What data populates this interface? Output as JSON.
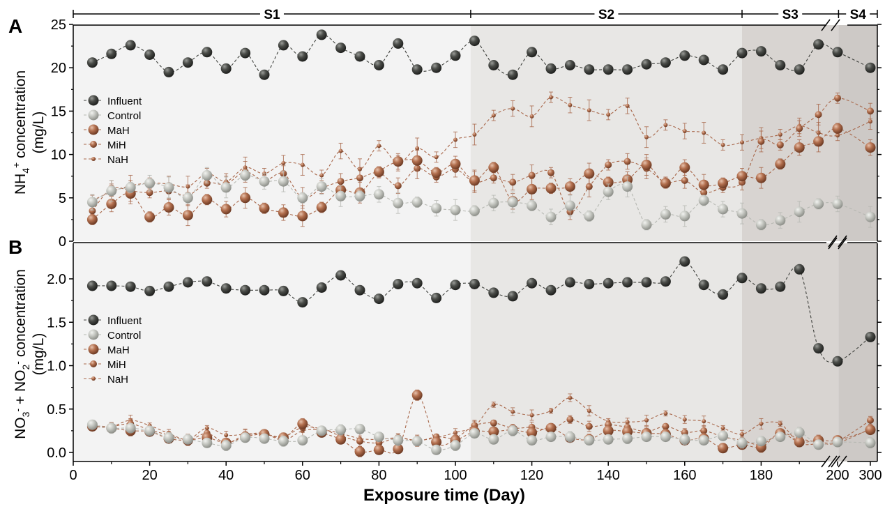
{
  "chart_data": [
    {
      "panel_label": "A",
      "type": "scatter",
      "ylabel_main": "NH",
      "ylabel_sub": "4",
      "ylabel_sup": "+",
      "ylabel_rest": " concentration",
      "ylabel_unit": "(mg/L)",
      "xlim": [
        0,
        300
      ],
      "ylim": [
        0,
        25
      ],
      "yticks": [
        "0",
        "5",
        "10",
        "15",
        "20",
        "25"
      ],
      "x_broken": true,
      "grid": false,
      "legend_position": "left",
      "series": [
        {
          "name": "Influent",
          "color": "#3d3f3b",
          "marker_size": "large",
          "x": [
            5,
            10,
            15,
            20,
            25,
            30,
            35,
            40,
            45,
            50,
            55,
            60,
            65,
            70,
            75,
            80,
            85,
            90,
            95,
            100,
            105,
            110,
            115,
            120,
            125,
            130,
            135,
            140,
            145,
            150,
            155,
            160,
            165,
            170,
            175,
            180,
            185,
            190,
            195,
            200,
            300
          ],
          "y": [
            20.6,
            21.6,
            22.6,
            21.5,
            19.5,
            20.6,
            21.8,
            19.9,
            21.7,
            19.2,
            22.6,
            21.3,
            23.8,
            22.3,
            21.3,
            20.3,
            22.8,
            19.8,
            20.0,
            21.4,
            23.1,
            20.3,
            19.2,
            21.8,
            19.9,
            20.3,
            19.8,
            19.8,
            19.8,
            20.4,
            20.6,
            21.4,
            20.9,
            19.8,
            21.7,
            21.9,
            20.3,
            19.8,
            22.7,
            21.8,
            20.0
          ]
        },
        {
          "name": "Control",
          "color": "#b6b8b2",
          "marker_size": "large",
          "x": [
            5,
            10,
            15,
            20,
            25,
            30,
            35,
            40,
            45,
            50,
            55,
            60,
            65,
            70,
            75,
            80,
            85,
            90,
            95,
            100,
            105,
            110,
            115,
            120,
            125,
            130,
            135,
            140,
            145,
            150,
            155,
            160,
            165,
            170,
            175,
            180,
            185,
            190,
            195,
            200,
            300
          ],
          "y": [
            4.5,
            5.8,
            6.2,
            6.7,
            6.2,
            5.0,
            7.6,
            6.2,
            7.6,
            6.9,
            6.9,
            5.0,
            6.3,
            5.2,
            5.2,
            5.4,
            4.4,
            4.5,
            3.8,
            3.6,
            3.5,
            4.4,
            4.5,
            4.1,
            2.8,
            4.1,
            2.9,
            5.7,
            6.3,
            1.9,
            3.1,
            2.9,
            4.7,
            3.7,
            3.2,
            1.9,
            2.4,
            3.4,
            4.3,
            4.3,
            2.8
          ]
        },
        {
          "name": "MaH",
          "color": "#a8674a",
          "marker_size": "large",
          "x": [
            5,
            10,
            15,
            20,
            25,
            30,
            35,
            40,
            45,
            50,
            55,
            60,
            65,
            70,
            75,
            80,
            85,
            90,
            95,
            100,
            105,
            110,
            115,
            120,
            125,
            130,
            135,
            140,
            145,
            150,
            155,
            160,
            165,
            170,
            175,
            180,
            185,
            190,
            195,
            200,
            300
          ],
          "y": [
            2.5,
            4.3,
            5.5,
            2.8,
            3.9,
            3.0,
            4.8,
            3.7,
            5.0,
            3.8,
            3.3,
            2.9,
            3.9,
            5.9,
            5.6,
            8.0,
            9.2,
            9.3,
            7.9,
            8.9,
            7.0,
            8.5,
            4.6,
            6.0,
            6.1,
            6.3,
            7.8,
            6.8,
            7.1,
            8.8,
            6.7,
            8.5,
            6.5,
            6.7,
            7.5,
            7.3,
            8.9,
            10.8,
            11.5,
            13.0,
            10.8
          ]
        },
        {
          "name": "MiH",
          "color": "#a8674a",
          "marker_size": "medium",
          "x": [
            5,
            10,
            15,
            20,
            25,
            30,
            35,
            40,
            45,
            50,
            55,
            60,
            65,
            70,
            75,
            80,
            85,
            90,
            95,
            100,
            105,
            110,
            115,
            120,
            125,
            130,
            135,
            140,
            145,
            150,
            155,
            160,
            165,
            170,
            175,
            180,
            185,
            190,
            195,
            200,
            300
          ],
          "y": [
            3.5,
            6.1,
            5.8,
            5.6,
            5.8,
            5.3,
            6.7,
            6.6,
            8.0,
            7.0,
            7.8,
            5.0,
            6.1,
            6.9,
            7.3,
            7.9,
            6.4,
            8.4,
            7.4,
            8.3,
            6.8,
            7.3,
            6.8,
            7.6,
            7.9,
            3.4,
            6.3,
            8.8,
            9.2,
            8.4,
            6.8,
            7.0,
            5.6,
            6.2,
            6.8,
            11.5,
            11.1,
            13.0,
            14.6,
            16.5,
            15.0
          ]
        },
        {
          "name": "NaH",
          "color": "#a8674a",
          "marker_size": "small",
          "x": [
            5,
            10,
            15,
            20,
            25,
            30,
            35,
            40,
            45,
            50,
            55,
            60,
            65,
            70,
            75,
            80,
            85,
            90,
            95,
            100,
            105,
            110,
            115,
            120,
            125,
            130,
            135,
            140,
            145,
            150,
            155,
            160,
            165,
            170,
            175,
            180,
            185,
            190,
            195,
            200,
            300
          ],
          "y": [
            4.7,
            5.7,
            6.4,
            6.7,
            6.6,
            6.3,
            7.8,
            6.9,
            8.5,
            7.8,
            9.0,
            8.8,
            7.6,
            10.4,
            8.3,
            11.0,
            9.0,
            10.7,
            9.7,
            11.7,
            12.3,
            14.5,
            15.3,
            14.4,
            16.6,
            15.7,
            15.1,
            14.6,
            15.6,
            12.0,
            13.4,
            12.7,
            12.5,
            11.1,
            11.4,
            11.9,
            12.3,
            13.3,
            12.5,
            12.2,
            13.8
          ]
        }
      ],
      "annotations": {
        "stages": [
          "S1",
          "S2",
          "S3",
          "S4"
        ],
        "stage_bounds": [
          0,
          104,
          175,
          203,
          300
        ]
      }
    },
    {
      "panel_label": "B",
      "type": "scatter",
      "xlabel": "Exposure time (Day)",
      "ylabel_unit": "(mg/L)",
      "xticks": [
        "0",
        "20",
        "40",
        "60",
        "80",
        "100",
        "120",
        "140",
        "160",
        "180",
        "200",
        "300"
      ],
      "yticks": [
        "0.0",
        "0.5",
        "1.0",
        "1.5",
        "2.0"
      ],
      "xlim": [
        0,
        300
      ],
      "ylim": [
        -0.1,
        2.4
      ],
      "x_broken": true,
      "grid": false,
      "legend_position": "left",
      "series": [
        {
          "name": "Influent",
          "color": "#3d3f3b",
          "marker_size": "large",
          "x": [
            5,
            10,
            15,
            20,
            25,
            30,
            35,
            40,
            45,
            50,
            55,
            60,
            65,
            70,
            75,
            80,
            85,
            90,
            95,
            100,
            105,
            110,
            115,
            120,
            125,
            130,
            135,
            140,
            145,
            150,
            155,
            160,
            165,
            170,
            175,
            180,
            185,
            190,
            195,
            200,
            300
          ],
          "y": [
            1.92,
            1.92,
            1.91,
            1.86,
            1.91,
            1.96,
            1.97,
            1.89,
            1.87,
            1.87,
            1.86,
            1.73,
            1.9,
            2.04,
            1.87,
            1.77,
            1.94,
            1.95,
            1.78,
            1.93,
            1.94,
            1.84,
            1.8,
            1.95,
            1.87,
            1.96,
            1.94,
            1.95,
            1.96,
            1.96,
            1.97,
            2.2,
            1.93,
            1.82,
            2.01,
            1.89,
            1.91,
            2.11,
            1.2,
            1.05,
            1.33
          ]
        },
        {
          "name": "Control",
          "color": "#b6b8b2",
          "marker_size": "large",
          "x": [
            5,
            10,
            15,
            20,
            25,
            30,
            35,
            40,
            45,
            50,
            55,
            60,
            65,
            70,
            75,
            80,
            85,
            90,
            95,
            100,
            105,
            110,
            115,
            120,
            125,
            130,
            135,
            140,
            145,
            150,
            155,
            160,
            165,
            170,
            175,
            180,
            185,
            190,
            195,
            200,
            300
          ],
          "y": [
            0.32,
            0.28,
            0.28,
            0.25,
            0.17,
            0.15,
            0.11,
            0.08,
            0.17,
            0.16,
            0.13,
            0.14,
            0.25,
            0.26,
            0.27,
            0.18,
            0.14,
            0.13,
            0.03,
            0.08,
            0.22,
            0.15,
            0.25,
            0.14,
            0.18,
            0.18,
            0.14,
            0.15,
            0.16,
            0.18,
            0.18,
            0.15,
            0.14,
            0.19,
            0.11,
            0.13,
            0.18,
            0.23,
            0.09,
            0.12,
            0.11
          ]
        },
        {
          "name": "MaH",
          "color": "#a8674a",
          "marker_size": "large",
          "x": [
            5,
            10,
            15,
            20,
            25,
            30,
            35,
            40,
            45,
            50,
            55,
            60,
            65,
            70,
            75,
            80,
            85,
            90,
            95,
            100,
            105,
            110,
            115,
            120,
            125,
            130,
            135,
            140,
            145,
            150,
            155,
            160,
            165,
            170,
            175,
            180,
            185,
            190,
            195,
            200,
            300
          ],
          "y": [
            0.3,
            0.28,
            0.25,
            0.24,
            0.16,
            0.14,
            0.17,
            0.11,
            0.18,
            0.21,
            0.17,
            0.33,
            0.23,
            0.15,
            0.01,
            0.03,
            0.04,
            0.66,
            0.12,
            0.14,
            0.24,
            0.24,
            0.26,
            0.23,
            0.28,
            0.17,
            0.15,
            0.25,
            0.24,
            0.22,
            0.21,
            0.14,
            0.16,
            0.05,
            0.09,
            0.06,
            0.22,
            0.12,
            0.14,
            0.14,
            0.26
          ]
        },
        {
          "name": "MiH",
          "color": "#a8674a",
          "marker_size": "medium",
          "x": [
            5,
            10,
            15,
            20,
            25,
            30,
            35,
            40,
            45,
            50,
            55,
            60,
            65,
            70,
            75,
            80,
            85,
            90,
            95,
            100,
            105,
            110,
            115,
            120,
            125,
            130,
            135,
            140,
            145,
            150,
            155,
            160,
            165,
            170,
            175,
            180,
            185,
            190,
            195,
            200,
            300
          ],
          "y": [
            0.31,
            0.3,
            0.33,
            0.26,
            0.2,
            0.14,
            0.22,
            0.11,
            0.2,
            0.21,
            0.18,
            0.29,
            0.27,
            0.19,
            0.13,
            0.11,
            0.17,
            0.13,
            0.18,
            0.17,
            0.31,
            0.34,
            0.28,
            0.29,
            0.26,
            0.38,
            0.3,
            0.32,
            0.29,
            0.24,
            0.3,
            0.23,
            0.25,
            0.18,
            0.14,
            0.09,
            0.22,
            0.16,
            0.12,
            0.13,
            0.37
          ]
        },
        {
          "name": "NaH",
          "color": "#a8674a",
          "marker_size": "small",
          "x": [
            5,
            10,
            15,
            20,
            25,
            30,
            35,
            40,
            45,
            50,
            55,
            60,
            65,
            70,
            75,
            80,
            85,
            90,
            95,
            100,
            105,
            110,
            115,
            120,
            125,
            130,
            135,
            140,
            145,
            150,
            155,
            160,
            165,
            170,
            175,
            180,
            185,
            190,
            195,
            200,
            300
          ],
          "y": [
            0.31,
            0.3,
            0.37,
            0.31,
            0.22,
            0.15,
            0.28,
            0.2,
            0.21,
            0.22,
            0.14,
            0.25,
            0.26,
            0.22,
            0.16,
            0.15,
            0.17,
            0.14,
            0.17,
            0.23,
            0.3,
            0.55,
            0.47,
            0.43,
            0.48,
            0.63,
            0.48,
            0.36,
            0.35,
            0.37,
            0.45,
            0.38,
            0.36,
            0.28,
            0.21,
            0.33,
            0.33,
            0.11,
            0.1,
            0.11,
            0.27
          ]
        }
      ],
      "annotations": {
        "stages": [
          "S1",
          "S2",
          "S3",
          "S4"
        ],
        "stage_bounds": [
          0,
          104,
          175,
          203,
          300
        ]
      }
    }
  ],
  "colors": {
    "influent": "#3d3f3b",
    "control": "#b6b8b2",
    "treatment": "#a8674a",
    "stage_S1": "#f3f3f3",
    "stage_S2": "#e8e7e5",
    "stage_S3": "#d8d4d1",
    "stage_S4": "#cdc9c6"
  }
}
